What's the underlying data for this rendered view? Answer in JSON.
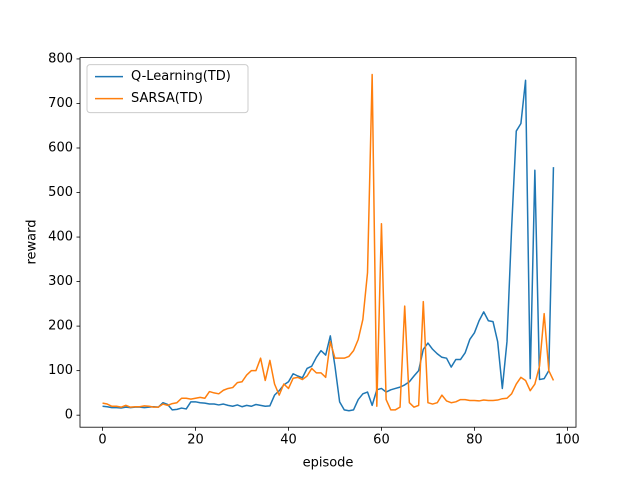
{
  "chart_data": {
    "type": "line",
    "x_label": "episode",
    "y_label": "reward",
    "x": [
      0,
      1,
      2,
      3,
      4,
      5,
      6,
      7,
      8,
      9,
      10,
      11,
      12,
      13,
      14,
      15,
      16,
      17,
      18,
      19,
      20,
      21,
      22,
      23,
      24,
      25,
      26,
      27,
      28,
      29,
      30,
      31,
      32,
      33,
      34,
      35,
      36,
      37,
      38,
      39,
      40,
      41,
      42,
      43,
      44,
      45,
      46,
      47,
      48,
      49,
      50,
      51,
      52,
      53,
      54,
      55,
      56,
      57,
      58,
      59,
      60,
      61,
      62,
      63,
      64,
      65,
      66,
      67,
      68,
      69,
      70,
      71,
      72,
      73,
      74,
      75,
      76,
      77,
      78,
      79,
      80,
      81,
      82,
      83,
      84,
      85,
      86,
      87,
      88,
      89,
      90,
      91,
      92,
      93,
      94,
      95,
      96,
      97
    ],
    "series": [
      {
        "name": "Q-Learning(TD)",
        "color": "#1f77b4",
        "values": [
          20,
          19,
          17,
          17,
          16,
          18,
          17,
          18,
          18,
          17,
          18,
          19,
          18,
          28,
          24,
          12,
          13,
          16,
          14,
          30,
          30,
          28,
          27,
          25,
          25,
          23,
          25,
          22,
          20,
          23,
          19,
          22,
          20,
          24,
          22,
          20,
          21,
          45,
          55,
          68,
          75,
          93,
          88,
          84,
          105,
          110,
          130,
          145,
          135,
          178,
          110,
          30,
          12,
          10,
          12,
          35,
          48,
          52,
          22,
          57,
          60,
          52,
          57,
          60,
          63,
          68,
          75,
          88,
          100,
          148,
          162,
          148,
          138,
          130,
          128,
          108,
          125,
          125,
          140,
          170,
          185,
          212,
          232,
          212,
          210,
          165,
          60,
          165,
          420,
          638,
          655,
          752,
          82,
          550,
          80,
          82,
          100,
          557
        ]
      },
      {
        "name": "SARSA(TD)",
        "color": "#ff7f0e",
        "values": [
          27,
          25,
          20,
          20,
          18,
          22,
          18,
          19,
          19,
          21,
          20,
          18,
          18,
          25,
          22,
          26,
          28,
          38,
          38,
          36,
          38,
          40,
          38,
          53,
          50,
          48,
          56,
          60,
          62,
          73,
          75,
          90,
          100,
          100,
          128,
          78,
          123,
          70,
          45,
          70,
          60,
          83,
          85,
          80,
          88,
          105,
          95,
          95,
          85,
          165,
          128,
          128,
          128,
          132,
          145,
          170,
          215,
          320,
          765,
          20,
          430,
          35,
          12,
          12,
          18,
          245,
          28,
          18,
          22,
          255,
          28,
          25,
          28,
          45,
          32,
          28,
          30,
          35,
          35,
          33,
          33,
          32,
          34,
          33,
          33,
          34,
          37,
          38,
          48,
          70,
          85,
          78,
          55,
          70,
          110,
          228,
          100,
          78
        ]
      }
    ],
    "xlim": [
      -4.85,
      101.85
    ],
    "xticks": [
      0,
      20,
      40,
      60,
      80,
      100
    ],
    "ylim": [
      -27,
      803
    ],
    "yticks": [
      0,
      100,
      200,
      300,
      400,
      500,
      600,
      700,
      800
    ],
    "legend": "upper left"
  }
}
